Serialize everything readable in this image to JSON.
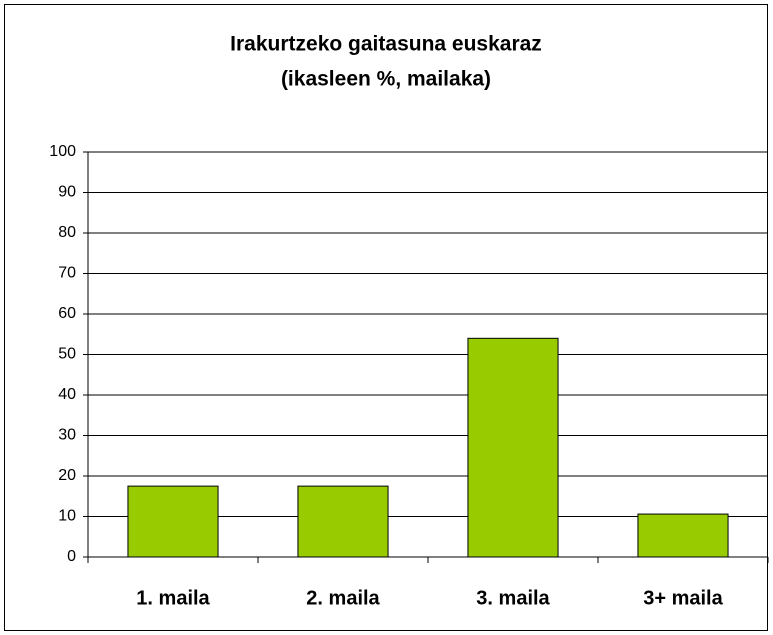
{
  "chart_data": {
    "type": "bar",
    "title": "Irakurtzeko gaitasuna euskaraz",
    "subtitle": "(ikasleen %, mailaka)",
    "categories": [
      "1. maila",
      "2. maila",
      "3. maila",
      "3+ maila"
    ],
    "values": [
      17.5,
      17.5,
      54,
      10.6
    ],
    "color": "#99cc00",
    "ylim": [
      0,
      100
    ],
    "yticks": [
      0,
      10,
      20,
      30,
      40,
      50,
      60,
      70,
      80,
      90,
      100
    ],
    "grid": true
  }
}
